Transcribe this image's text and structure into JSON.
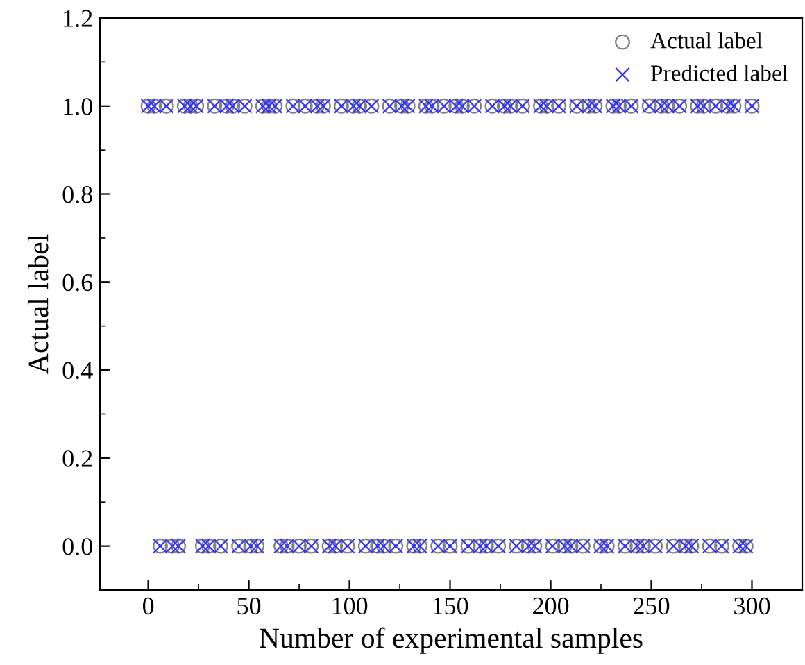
{
  "chart_data": {
    "type": "scatter",
    "xlabel": "Number of experimental samples",
    "ylabel": "Actual label",
    "xlim": [
      -24,
      325
    ],
    "ylim": [
      -0.1,
      1.2
    ],
    "xticks": [
      0,
      50,
      100,
      150,
      200,
      250,
      300
    ],
    "yticks": [
      {
        "value": 0.0,
        "label": "0.0"
      },
      {
        "value": 0.2,
        "label": "0.2"
      },
      {
        "value": 0.4,
        "label": "0.4"
      },
      {
        "value": 0.6,
        "label": "0.6"
      },
      {
        "value": 0.8,
        "label": "0.8"
      },
      {
        "value": 1.0,
        "label": "1.0"
      },
      {
        "value": 1.2,
        "label": "1.2"
      }
    ],
    "grid": false,
    "legend": "top right",
    "x": [
      0,
      3,
      6,
      9,
      12,
      15,
      18,
      21,
      24,
      27,
      30,
      33,
      36,
      39,
      42,
      45,
      48,
      51,
      54,
      57,
      60,
      63,
      66,
      69,
      72,
      75,
      78,
      81,
      84,
      87,
      90,
      93,
      96,
      99,
      102,
      105,
      108,
      111,
      114,
      117,
      120,
      123,
      126,
      129,
      132,
      135,
      138,
      141,
      144,
      147,
      150,
      153,
      156,
      159,
      162,
      165,
      168,
      171,
      174,
      177,
      180,
      183,
      186,
      189,
      192,
      195,
      198,
      201,
      204,
      207,
      210,
      213,
      216,
      219,
      222,
      225,
      228,
      231,
      234,
      237,
      240,
      243,
      246,
      249,
      252,
      255,
      258,
      261,
      264,
      267,
      270,
      273,
      276,
      279,
      282,
      285,
      288,
      291,
      294,
      297,
      300
    ],
    "series": [
      {
        "name": "Actual label",
        "color": "#808080",
        "marker": "circle",
        "values": [
          1,
          1,
          0,
          1,
          0,
          0,
          1,
          1,
          1,
          0,
          0,
          1,
          0,
          1,
          1,
          0,
          1,
          0,
          0,
          1,
          1,
          1,
          0,
          0,
          1,
          0,
          1,
          0,
          1,
          1,
          0,
          0,
          1,
          0,
          1,
          1,
          0,
          1,
          0,
          0,
          1,
          0,
          1,
          1,
          0,
          0,
          1,
          1,
          0,
          1,
          0,
          1,
          1,
          0,
          1,
          0,
          0,
          1,
          0,
          1,
          1,
          0,
          1,
          0,
          0,
          1,
          1,
          0,
          1,
          0,
          0,
          1,
          0,
          1,
          1,
          0,
          0,
          1,
          1,
          0,
          1,
          0,
          0,
          1,
          0,
          1,
          1,
          0,
          1,
          0,
          0,
          1,
          1,
          0,
          1,
          0,
          1,
          1,
          0,
          0,
          1
        ]
      },
      {
        "name": "Predicted label",
        "color": "#3333ff",
        "marker": "cross",
        "values": [
          1,
          1,
          0,
          1,
          0,
          0,
          1,
          1,
          1,
          0,
          0,
          1,
          0,
          1,
          1,
          0,
          1,
          0,
          0,
          1,
          1,
          1,
          0,
          0,
          1,
          0,
          1,
          0,
          1,
          1,
          0,
          0,
          1,
          0,
          1,
          1,
          0,
          1,
          0,
          0,
          1,
          0,
          1,
          1,
          0,
          0,
          1,
          1,
          0,
          1,
          0,
          1,
          1,
          0,
          1,
          0,
          0,
          1,
          0,
          1,
          1,
          0,
          1,
          0,
          0,
          1,
          1,
          0,
          1,
          0,
          0,
          1,
          0,
          1,
          1,
          0,
          0,
          1,
          1,
          0,
          1,
          0,
          0,
          1,
          0,
          1,
          1,
          0,
          1,
          0,
          0,
          1,
          1,
          0,
          1,
          0,
          1,
          1,
          0,
          0,
          1
        ]
      }
    ]
  }
}
